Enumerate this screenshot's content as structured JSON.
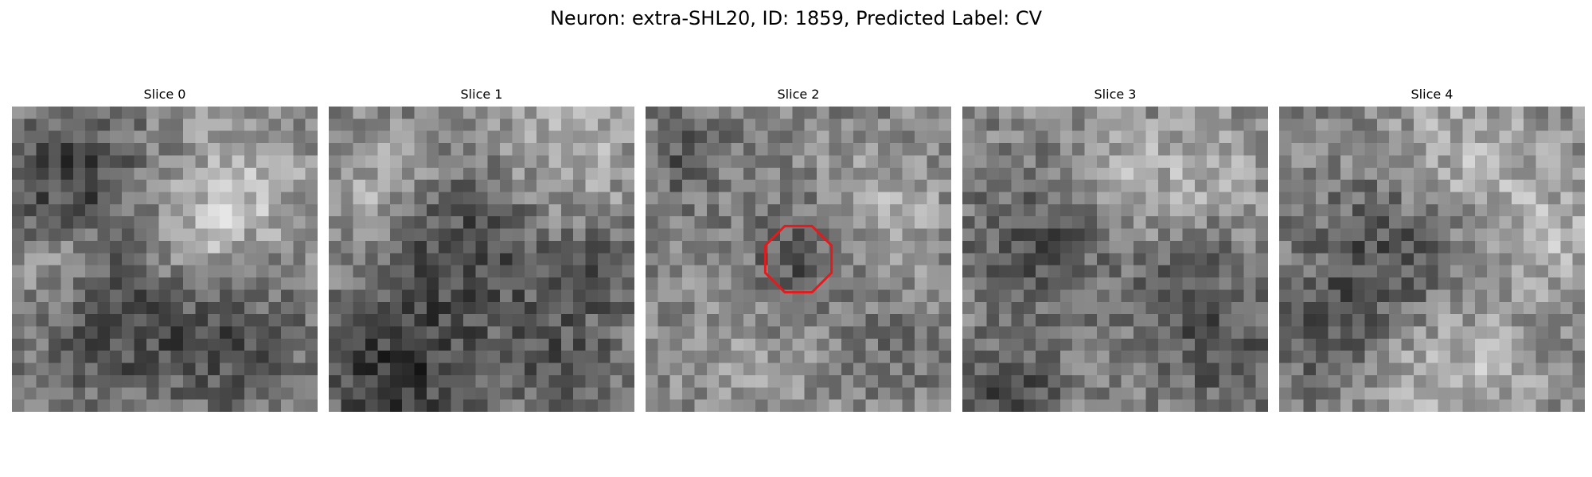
{
  "figure": {
    "title": "Neuron: extra-SHL20, ID: 1859, Predicted Label: CV"
  },
  "slices": [
    {
      "label": "Slice 0"
    },
    {
      "label": "Slice 1"
    },
    {
      "label": "Slice 2"
    },
    {
      "label": "Slice 3"
    },
    {
      "label": "Slice 4"
    }
  ],
  "image": {
    "colormap": "gray",
    "grid_size": 25,
    "roi_slice_index": 2,
    "roi_color": "#e41a1c"
  }
}
